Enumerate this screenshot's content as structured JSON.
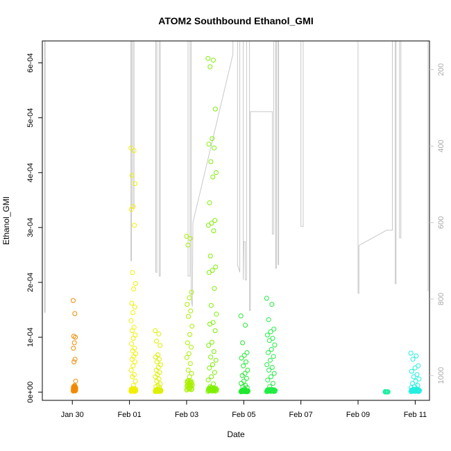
{
  "chart_data": {
    "type": "scatter",
    "title": "ATOM2 Southbound Ethanol_GMI",
    "xlabel": "Date",
    "ylabel": "Ethanol_GMI",
    "xlim": [
      28.95,
      42.5
    ],
    "ylim": [
      -1.5e-05,
      0.00064
    ],
    "x_ticks": [
      {
        "value": 30,
        "label": "Jan 30"
      },
      {
        "value": 32,
        "label": "Feb 01"
      },
      {
        "value": 34,
        "label": "Feb 03"
      },
      {
        "value": 36,
        "label": "Feb 05"
      },
      {
        "value": 38,
        "label": "Feb 07"
      },
      {
        "value": 40,
        "label": "Feb 09"
      },
      {
        "value": 42,
        "label": "Feb 11"
      }
    ],
    "y_ticks": [
      {
        "value": 0,
        "label": "0e+00"
      },
      {
        "value": 0.0001,
        "label": "1e-04"
      },
      {
        "value": 0.0002,
        "label": "2e-04"
      },
      {
        "value": 0.0003,
        "label": "3e-04"
      },
      {
        "value": 0.0004,
        "label": "4e-04"
      },
      {
        "value": 0.0005,
        "label": "5e-04"
      },
      {
        "value": 0.0006,
        "label": "6e-04"
      }
    ],
    "right_axis": {
      "lim": [
        125,
        1065
      ],
      "reversed": true,
      "ticks": [
        {
          "value": 200,
          "label": "200"
        },
        {
          "value": 400,
          "label": "400"
        },
        {
          "value": 600,
          "label": "600"
        },
        {
          "value": 800,
          "label": "800"
        },
        {
          "value": 1000,
          "label": "1000"
        }
      ],
      "color": "#c8c8c8"
    },
    "track": [
      [
        29.03,
        125
      ],
      [
        29.03,
        835
      ],
      [
        29.05,
        835
      ],
      [
        29.05,
        125
      ],
      [
        32.05,
        125
      ],
      [
        32.05,
        700
      ],
      [
        32.07,
        700
      ],
      [
        32.07,
        125
      ],
      [
        32.12,
        125
      ],
      [
        32.12,
        560
      ],
      [
        32.16,
        560
      ],
      [
        32.16,
        125
      ],
      [
        32.92,
        125
      ],
      [
        32.92,
        730
      ],
      [
        32.96,
        730
      ],
      [
        32.96,
        125
      ],
      [
        33.04,
        125
      ],
      [
        33.04,
        740
      ],
      [
        33.08,
        740
      ],
      [
        33.08,
        125
      ],
      [
        34.05,
        125
      ],
      [
        34.05,
        740
      ],
      [
        34.12,
        740
      ],
      [
        34.12,
        125
      ],
      [
        34.16,
        125
      ],
      [
        34.16,
        800
      ],
      [
        34.2,
        820
      ],
      [
        34.22,
        600
      ],
      [
        35.62,
        160
      ],
      [
        35.62,
        125
      ],
      [
        35.78,
        125
      ],
      [
        35.78,
        710
      ],
      [
        35.86,
        730
      ],
      [
        35.86,
        125
      ],
      [
        35.98,
        125
      ],
      [
        35.98,
        750
      ],
      [
        36.0,
        650
      ],
      [
        36.05,
        650
      ],
      [
        36.05,
        750
      ],
      [
        36.1,
        750
      ],
      [
        36.1,
        125
      ],
      [
        36.2,
        125
      ],
      [
        36.2,
        830
      ],
      [
        36.23,
        830
      ],
      [
        36.23,
        310
      ],
      [
        37.0,
        310
      ],
      [
        37.0,
        630
      ],
      [
        37.05,
        630
      ],
      [
        37.05,
        125
      ],
      [
        37.12,
        125
      ],
      [
        37.12,
        720
      ],
      [
        37.14,
        720
      ],
      [
        37.14,
        125
      ],
      [
        37.2,
        125
      ],
      [
        37.2,
        710
      ],
      [
        37.22,
        710
      ],
      [
        37.22,
        125
      ],
      [
        38.0,
        125
      ],
      [
        38.0,
        610
      ],
      [
        38.08,
        610
      ],
      [
        38.08,
        125
      ],
      [
        40.0,
        125
      ],
      [
        40.0,
        785
      ],
      [
        40.03,
        785
      ],
      [
        40.03,
        660
      ],
      [
        41.0,
        620
      ],
      [
        41.2,
        620
      ],
      [
        41.2,
        125
      ],
      [
        41.3,
        125
      ],
      [
        41.3,
        760
      ],
      [
        41.33,
        760
      ],
      [
        41.33,
        125
      ],
      [
        41.45,
        125
      ],
      [
        41.45,
        640
      ],
      [
        41.5,
        640
      ],
      [
        41.5,
        125
      ],
      [
        42.45,
        125
      ],
      [
        42.45,
        780
      ]
    ],
    "flights": [
      {
        "t0": 30.03,
        "t1": 30.12,
        "color": "#f28a00",
        "base": 6.5e-06,
        "values": [
          0.000167,
          0.000143,
          0.000102,
          0.0001,
          9e-05,
          8e-05,
          6e-05,
          5.5e-05,
          2e-05,
          1.2e-05,
          1e-05,
          8e-06,
          7e-06
        ]
      },
      {
        "t0": 32.05,
        "t1": 32.22,
        "color": "#f2ef00",
        "base": 4e-06,
        "values": [
          0.000445,
          0.00044,
          0.000395,
          0.00038,
          0.000338,
          0.000333,
          0.000304,
          0.000218,
          0.000198,
          0.000188,
          0.000162,
          0.000155,
          0.000145,
          0.00013,
          0.000118,
          0.000112,
          0.000104,
          9.8e-05,
          8.8e-05,
          8e-05,
          7.5e-05,
          7e-05,
          6.5e-05,
          6e-05,
          5.5e-05,
          4.8e-05,
          4e-05,
          3.2e-05,
          2.8e-05,
          2e-05,
          1.2e-05
        ]
      },
      {
        "t0": 32.9,
        "t1": 33.1,
        "color": "#ddf000",
        "base": 3e-06,
        "values": [
          0.000112,
          0.000106,
          9.3e-05,
          8.5e-05,
          6.8e-05,
          6.4e-05,
          6e-05,
          5.5e-05,
          5e-05,
          4.5e-05,
          4e-05,
          3.6e-05,
          3.2e-05,
          2.8e-05,
          2.4e-05,
          2e-05,
          1.5e-05,
          1.2e-05,
          1e-05,
          8e-06
        ]
      },
      {
        "t0": 34.0,
        "t1": 34.2,
        "color": "#a8ef00",
        "base": 1.3e-05,
        "values": [
          0.000284,
          0.00028,
          0.000268,
          0.000182,
          0.000172,
          0.00016,
          0.000148,
          0.000138,
          0.00012,
          0.000105,
          9e-05,
          8.2e-05,
          7e-05,
          6.3e-05,
          5.2e-05,
          4e-05,
          3.4e-05,
          2.8e-05,
          2e-05
        ]
      },
      {
        "t0": 34.75,
        "t1": 35.05,
        "color": "#7cf000",
        "base": 5e-06,
        "values": [
          0.000608,
          0.000605,
          0.000593,
          0.000516,
          0.000462,
          0.000452,
          0.000445,
          0.00042,
          0.0004,
          0.000392,
          0.000345,
          0.000313,
          0.000308,
          0.000304,
          0.000294,
          0.000248,
          0.000228,
          0.000222,
          0.000218,
          0.000189,
          0.000158,
          0.000142,
          0.000127,
          0.000124,
          0.000112,
          9.1e-05,
          8.5e-05,
          7.4e-05,
          6.4e-05,
          5.8e-05,
          5e-05,
          4.4e-05,
          3.6e-05,
          2.8e-05,
          2.2e-05,
          1.5e-05,
          1e-05
        ]
      },
      {
        "t0": 35.9,
        "t1": 36.15,
        "color": "#20e830",
        "base": 2e-06,
        "values": [
          0.000139,
          0.000122,
          9e-05,
          7.2e-05,
          6.7e-05,
          6.2e-05,
          5.5e-05,
          4.8e-05,
          4e-05,
          3.4e-05,
          3e-05,
          2.5e-05,
          2e-05,
          1.6e-05,
          1.2e-05,
          1e-05,
          8e-06,
          6e-06
        ]
      },
      {
        "t0": 36.8,
        "t1": 37.1,
        "color": "#22ec44",
        "base": 3e-06,
        "values": [
          0.000171,
          0.00016,
          0.000132,
          0.000115,
          0.00011,
          0.000104,
          9.8e-05,
          9.4e-05,
          8.6e-05,
          7.8e-05,
          7.2e-05,
          6.5e-05,
          5.8e-05,
          5e-05,
          4.5e-05,
          4e-05,
          3.4e-05,
          2.8e-05,
          2.2e-05,
          1.6e-05,
          1e-05
        ]
      },
      {
        "t0": 40.95,
        "t1": 41.05,
        "color": "#22efa6",
        "base": 5e-07,
        "values": [
          1e-06,
          5e-07
        ]
      },
      {
        "t0": 41.85,
        "t1": 42.15,
        "color": "#22efe0",
        "base": 3e-06,
        "values": [
          7.1e-05,
          6.6e-05,
          6e-05,
          4.8e-05,
          4.4e-05,
          3.8e-05,
          3.2e-05,
          2.8e-05,
          2.4e-05,
          2e-05,
          1.6e-05,
          1.2e-05,
          1e-05,
          8e-06,
          6e-06
        ]
      }
    ]
  }
}
